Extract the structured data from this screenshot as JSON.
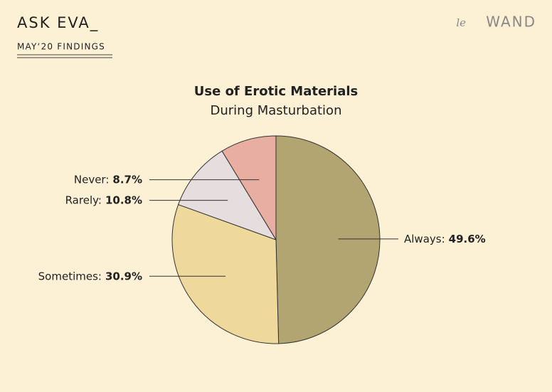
{
  "header": {
    "title": "ASK EVA_",
    "subtitle": "MAY‘20 FINDINGS",
    "logo_prefix": "le",
    "logo": "WAND"
  },
  "chart_data": {
    "type": "pie",
    "title": "Use of Erotic Materials",
    "subtitle": "During Masturbation",
    "categories": [
      "Always:",
      "Sometimes:",
      "Rarely:",
      "Never:"
    ],
    "values": [
      49.6,
      30.9,
      10.8,
      8.7
    ],
    "value_labels": [
      "49.6%",
      "30.9%",
      "10.8%",
      "8.7%"
    ],
    "colors": [
      "#b2a572",
      "#efd89c",
      "#e6dede",
      "#e9aea2"
    ]
  }
}
